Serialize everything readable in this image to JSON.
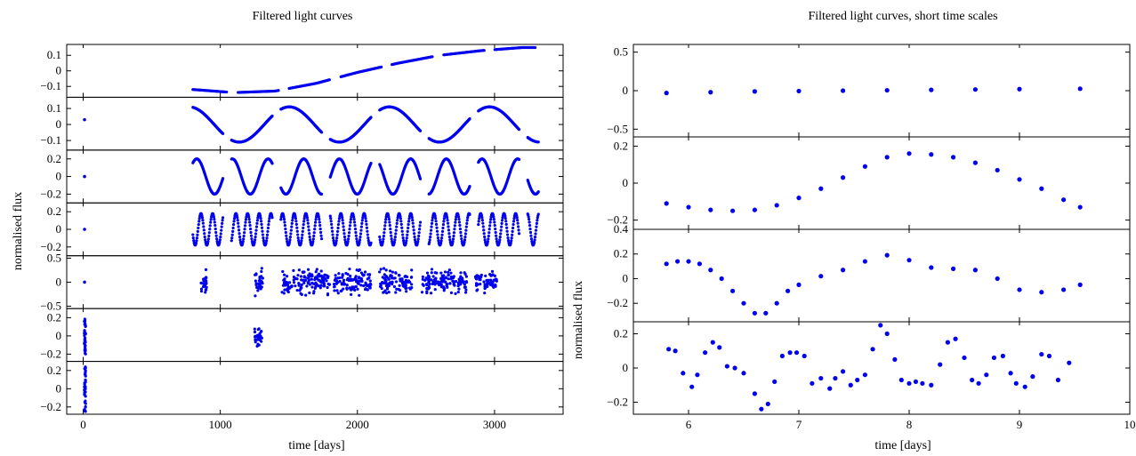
{
  "figure": {
    "left_title": "Filtered light curves",
    "right_title": "Filtered light curves, short time scales",
    "left_xlabel": "time [days]",
    "right_xlabel": "time [days]",
    "left_ylabel": "normalised flux",
    "right_ylabel": "normalised flux",
    "point_color": "#0000ee"
  },
  "chart_data": [
    {
      "type": "scatter",
      "title": "Filtered light curves",
      "xlabel": "time [days]",
      "ylabel": "normalised flux",
      "xlim": [
        -120,
        3500
      ],
      "xticks": [
        0,
        1000,
        2000,
        3000
      ],
      "xtick_labels": [
        "0",
        "1000",
        "2000",
        "3000"
      ],
      "x_segments": [
        [
          0,
          25
        ],
        [
          800,
          3320
        ]
      ],
      "panels": [
        {
          "ylim": [
            -0.17,
            0.17
          ],
          "yticks": [
            0.1,
            0,
            -0.1
          ],
          "ytick_labels": [
            "0.1",
            "0",
            "−0.1"
          ],
          "series": [
            {
              "shape": "trend",
              "x": [
                800,
                1100,
                1400,
                1700,
                2000,
                2300,
                2600,
                2900,
                3200,
                3320
              ],
              "values": [
                -0.12,
                -0.14,
                -0.13,
                -0.08,
                -0.01,
                0.05,
                0.1,
                0.13,
                0.15,
                0.15
              ]
            }
          ]
        },
        {
          "ylim": [
            -0.16,
            0.17
          ],
          "yticks": [
            0.1,
            0,
            -0.1
          ],
          "ytick_labels": [
            "0.1",
            "0",
            "−0.1"
          ],
          "series": [
            {
              "shape": "wave",
              "amplitude": 0.11,
              "period_days": 730,
              "phase": 1.2,
              "offset": 0,
              "early_value": 0.03
            }
          ]
        },
        {
          "ylim": [
            -0.3,
            0.3
          ],
          "yticks": [
            0.2,
            0,
            -0.2
          ],
          "ytick_labels": [
            "0.2",
            "0",
            "−0.2"
          ],
          "series": [
            {
              "shape": "wave",
              "amplitude": 0.2,
              "period_days": 260,
              "phase": 0.4,
              "offset": 0,
              "early_value": 0.0
            }
          ]
        },
        {
          "ylim": [
            -0.3,
            0.3
          ],
          "yticks": [
            0.2,
            0,
            -0.2
          ],
          "ytick_labels": [
            "0.2",
            "0",
            "−0.2"
          ],
          "series": [
            {
              "shape": "wave",
              "amplitude": 0.18,
              "period_days": 85,
              "phase": 0.9,
              "offset": 0,
              "early_value": 0.0
            }
          ]
        },
        {
          "ylim": [
            -0.55,
            0.55
          ],
          "yticks": [
            0.5,
            0,
            -0.5
          ],
          "ytick_labels": [
            "0.5",
            "0",
            "−0.5"
          ],
          "series": [
            {
              "shape": "noise",
              "spread": 0.22,
              "x_ranges": [
                [
                  860,
                  900
                ],
                [
                  1250,
                  1310
                ],
                [
                  1450,
                  1800
                ],
                [
                  1830,
                  2100
                ],
                [
                  2160,
                  2400
                ],
                [
                  2470,
                  2800
                ],
                [
                  2860,
                  3020
                ]
              ],
              "early_value": 0.0
            }
          ]
        },
        {
          "ylim": [
            -0.28,
            0.3
          ],
          "yticks": [
            0.2,
            0,
            -0.2
          ],
          "ytick_labels": [
            "0.2",
            "0",
            "−0.2"
          ],
          "series": [
            {
              "shape": "noise",
              "spread": 0.1,
              "x_ranges": [
                [
                  1250,
                  1310
                ]
              ],
              "early_spread": 0.2
            }
          ]
        },
        {
          "ylim": [
            -0.28,
            0.3
          ],
          "yticks": [
            0.2,
            0,
            -0.2
          ],
          "ytick_labels": [
            "0.2",
            "0",
            "−0.2"
          ],
          "series": [
            {
              "shape": "noise",
              "spread": 0.0,
              "x_ranges": [],
              "early_spread": 0.25
            }
          ]
        }
      ]
    },
    {
      "type": "scatter",
      "title": "Filtered light curves, short time scales",
      "xlabel": "time [days]",
      "ylabel": "normalised flux",
      "xlim": [
        5.5,
        10
      ],
      "xticks": [
        6,
        7,
        8,
        9,
        10
      ],
      "xtick_labels": [
        "6",
        "7",
        "8",
        "9",
        "10"
      ],
      "panels": [
        {
          "ylim": [
            -0.6,
            0.6
          ],
          "yticks": [
            0.5,
            0,
            -0.5
          ],
          "ytick_labels": [
            "0.5",
            "0",
            "−0.5"
          ],
          "series": [
            {
              "x": [
                5.8,
                6.2,
                6.6,
                7.0,
                7.4,
                7.8,
                8.2,
                8.6,
                9.0,
                9.55
              ],
              "values": [
                -0.03,
                -0.02,
                -0.01,
                -0.005,
                0.0,
                0.005,
                0.01,
                0.015,
                0.02,
                0.025
              ]
            }
          ]
        },
        {
          "ylim": [
            -0.25,
            0.25
          ],
          "yticks": [
            0.2,
            0,
            -0.2
          ],
          "ytick_labels": [
            "0.2",
            "0",
            "−0.2"
          ],
          "series": [
            {
              "x": [
                5.8,
                6.0,
                6.2,
                6.4,
                6.6,
                6.8,
                7.0,
                7.2,
                7.4,
                7.6,
                7.8,
                8.0,
                8.2,
                8.4,
                8.6,
                8.8,
                9.0,
                9.2,
                9.4,
                9.55
              ],
              "values": [
                -0.11,
                -0.13,
                -0.145,
                -0.15,
                -0.145,
                -0.12,
                -0.08,
                -0.03,
                0.03,
                0.09,
                0.14,
                0.16,
                0.155,
                0.14,
                0.11,
                0.07,
                0.02,
                -0.03,
                -0.09,
                -0.13
              ]
            }
          ]
        },
        {
          "ylim": [
            -0.35,
            0.4
          ],
          "yticks": [
            0.4,
            0.2,
            0,
            -0.2
          ],
          "ytick_labels": [
            "0.4",
            "0.2",
            "0",
            "−0.2"
          ],
          "series": [
            {
              "x": [
                5.8,
                5.9,
                6.0,
                6.1,
                6.2,
                6.3,
                6.4,
                6.5,
                6.6,
                6.7,
                6.8,
                6.9,
                7.0,
                7.2,
                7.4,
                7.6,
                7.8,
                8.0,
                8.2,
                8.4,
                8.6,
                8.8,
                9.0,
                9.2,
                9.4,
                9.55
              ],
              "values": [
                0.12,
                0.14,
                0.14,
                0.12,
                0.07,
                0.0,
                -0.1,
                -0.2,
                -0.28,
                -0.28,
                -0.2,
                -0.1,
                -0.05,
                0.02,
                0.07,
                0.14,
                0.19,
                0.15,
                0.09,
                0.08,
                0.07,
                0.0,
                -0.09,
                -0.11,
                -0.09,
                -0.05
              ]
            }
          ]
        },
        {
          "ylim": [
            -0.27,
            0.27
          ],
          "yticks": [
            0.2,
            0,
            -0.2
          ],
          "ytick_labels": [
            "0.2",
            "0",
            "−0.2"
          ],
          "series": [
            {
              "x": [
                5.82,
                5.88,
                5.95,
                6.03,
                6.08,
                6.15,
                6.22,
                6.28,
                6.35,
                6.42,
                6.5,
                6.6,
                6.66,
                6.72,
                6.78,
                6.85,
                6.92,
                6.98,
                7.05,
                7.12,
                7.2,
                7.28,
                7.33,
                7.4,
                7.47,
                7.53,
                7.6,
                7.67,
                7.74,
                7.8,
                7.87,
                7.93,
                8.0,
                8.06,
                8.12,
                8.2,
                8.28,
                8.35,
                8.42,
                8.5,
                8.57,
                8.63,
                8.7,
                8.77,
                8.85,
                8.92,
                8.97,
                9.05,
                9.12,
                9.2,
                9.27,
                9.35,
                9.45
              ],
              "values": [
                0.11,
                0.1,
                -0.03,
                -0.11,
                -0.04,
                0.09,
                0.15,
                0.12,
                0.01,
                0.0,
                -0.03,
                -0.15,
                -0.24,
                -0.21,
                -0.08,
                0.07,
                0.09,
                0.09,
                0.07,
                -0.09,
                -0.06,
                -0.12,
                -0.06,
                -0.02,
                -0.1,
                -0.07,
                -0.04,
                0.11,
                0.25,
                0.2,
                0.05,
                -0.07,
                -0.09,
                -0.08,
                -0.09,
                -0.1,
                0.02,
                0.15,
                0.17,
                0.06,
                -0.07,
                -0.09,
                -0.04,
                0.06,
                0.07,
                -0.03,
                -0.09,
                -0.11,
                -0.05,
                0.08,
                0.07,
                -0.07,
                0.03
              ]
            }
          ]
        }
      ]
    }
  ]
}
